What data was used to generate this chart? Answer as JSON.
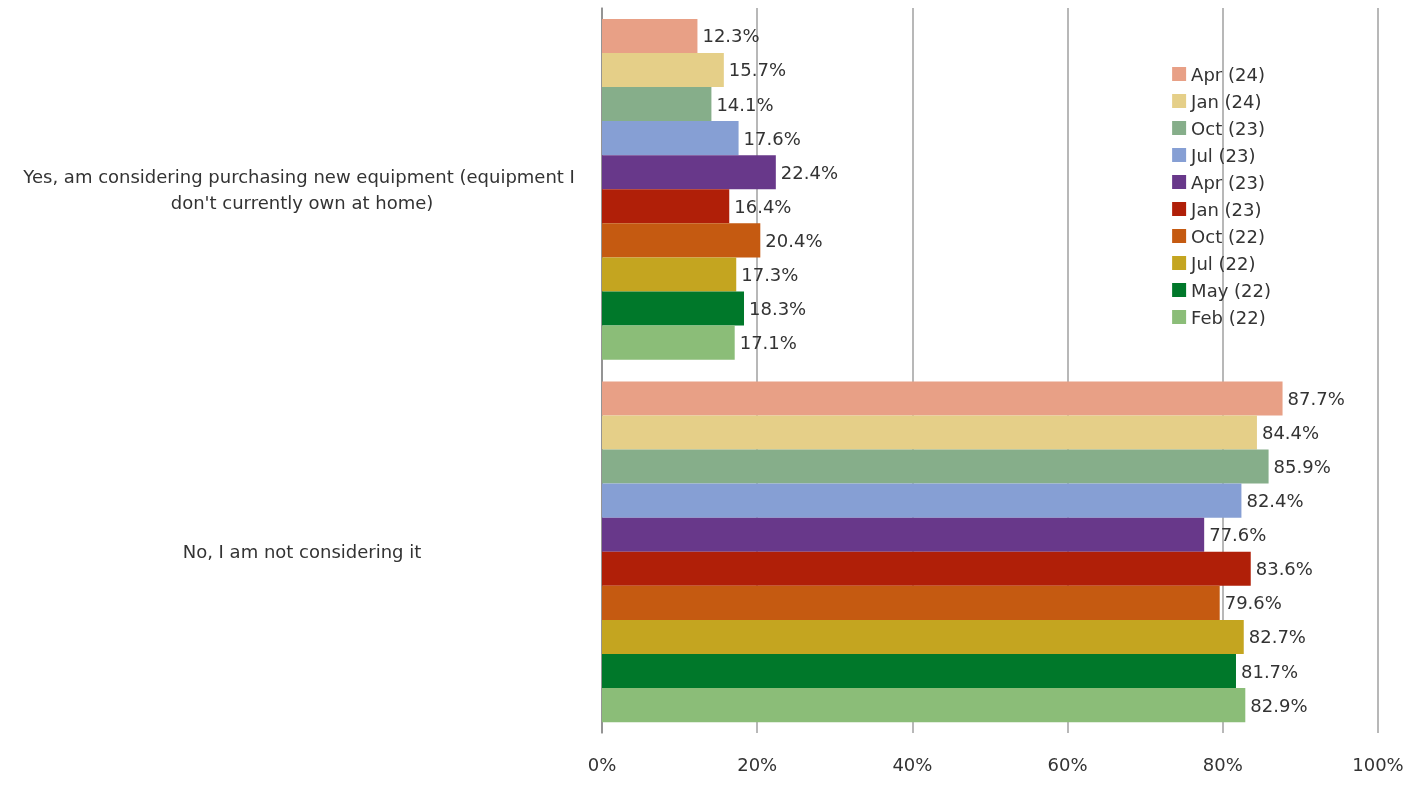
{
  "chart_data": {
    "type": "bar",
    "orientation": "horizontal",
    "categories": [
      "Yes, am considering purchasing new equipment (equipment I don't currently own at home)",
      "No, I am not considering it"
    ],
    "series": [
      {
        "name": "Apr (24)",
        "color": "#e8a086",
        "values": [
          12.3,
          87.7
        ],
        "value_labels": [
          "12.3%",
          "87.7%"
        ]
      },
      {
        "name": "Jan (24)",
        "color": "#e5cf88",
        "values": [
          15.7,
          84.4
        ],
        "value_labels": [
          "15.7%",
          "84.4%"
        ]
      },
      {
        "name": "Oct (23)",
        "color": "#86ae8a",
        "values": [
          14.1,
          85.9
        ],
        "value_labels": [
          "14.1%",
          "85.9%"
        ]
      },
      {
        "name": "Jul (23)",
        "color": "#869fd4",
        "values": [
          17.6,
          82.4
        ],
        "value_labels": [
          "17.6%",
          "82.4%"
        ]
      },
      {
        "name": "Apr (23)",
        "color": "#68388a",
        "values": [
          22.4,
          77.6
        ],
        "value_labels": [
          "22.4%",
          "77.6%"
        ]
      },
      {
        "name": "Jan (23)",
        "color": "#b01f08",
        "values": [
          16.4,
          83.6
        ],
        "value_labels": [
          "16.4%",
          "83.6%"
        ]
      },
      {
        "name": "Oct (22)",
        "color": "#c55a11",
        "values": [
          20.4,
          79.6
        ],
        "value_labels": [
          "20.4%",
          "79.6%"
        ]
      },
      {
        "name": "Jul (22)",
        "color": "#c4a520",
        "values": [
          17.3,
          82.7
        ],
        "value_labels": [
          "17.3%",
          "82.7%"
        ]
      },
      {
        "name": "May (22)",
        "color": "#00782a",
        "values": [
          18.3,
          81.7
        ],
        "value_labels": [
          "18.3%",
          "81.7%"
        ]
      },
      {
        "name": "Feb (22)",
        "color": "#8bbd78",
        "values": [
          17.1,
          82.9
        ],
        "value_labels": [
          "17.1%",
          "82.9%"
        ]
      }
    ],
    "xlim": [
      0,
      100
    ],
    "xticks": [
      {
        "value": 0,
        "label": "0%"
      },
      {
        "value": 20,
        "label": "20%"
      },
      {
        "value": 40,
        "label": "40%"
      },
      {
        "value": 60,
        "label": "60%"
      },
      {
        "value": 80,
        "label": "80%"
      },
      {
        "value": 100,
        "label": "100%"
      }
    ],
    "grid": "x",
    "legend": "top right"
  }
}
